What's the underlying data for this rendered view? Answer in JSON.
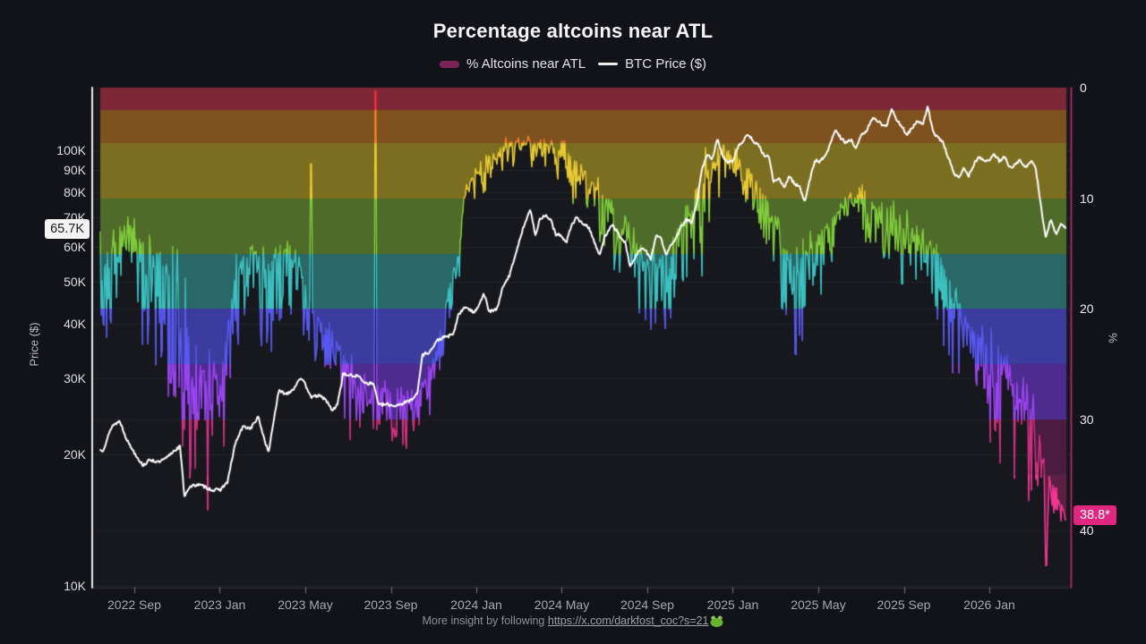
{
  "header": {
    "title": "Percentage altcoins near ATL",
    "legend": [
      {
        "label": "% Altcoins near ATL",
        "swatch": "bar",
        "color": "#7c2356"
      },
      {
        "label": "BTC Price ($)",
        "swatch": "line",
        "color": "#ececec"
      }
    ]
  },
  "footer": {
    "prefix": "More insight by following ",
    "link_text": "https://x.com/darkfost_coc?s=21",
    "emoji": "frog-icon"
  },
  "colors": {
    "background": "#121318",
    "plot_background": "#17181d",
    "btc_line": "#ffffff",
    "left_axis": "#ebebee",
    "right_axis": "#c12a72",
    "accent_pink": "#e0267f",
    "current_price_box_bg": "#f4f4f4",
    "grid": "rgba(255,255,255,0.055)"
  },
  "chart_data": {
    "type": "combo",
    "title": "Percentage altcoins near ATL",
    "x_axis": {
      "start": 2022.545,
      "end": 2026.3,
      "tick_labels": [
        "2022 Sep",
        "2023 Jan",
        "2023 May",
        "2023 Sep",
        "2024 Jan",
        "2024 May",
        "2024 Sep",
        "2025 Jan",
        "2025 May",
        "2025 Sep",
        "2026 Jan"
      ],
      "tick_positions": [
        2022.6667,
        2023.0,
        2023.3333,
        2023.6667,
        2024.0,
        2024.3333,
        2024.6667,
        2025.0,
        2025.3333,
        2025.6667,
        2026.0
      ]
    },
    "y_left": {
      "title": "Price ($)",
      "scale": "log",
      "unit": "USD",
      "tick_labels": [
        "100K",
        "90K",
        "80K",
        "70K",
        "60K",
        "50K",
        "40K",
        "30K",
        "20K",
        "10K"
      ],
      "tick_values_k": [
        100,
        90,
        80,
        70,
        60,
        50,
        40,
        30,
        20,
        10
      ],
      "current": {
        "label": "65.7K",
        "value_k": 65.7
      }
    },
    "y_right": {
      "title": "%",
      "inverted": true,
      "range": [
        0,
        45.2
      ],
      "tick_labels": [
        "0",
        "10",
        "20",
        "30",
        "40"
      ],
      "tick_values": [
        0,
        10,
        20,
        30,
        40
      ],
      "current": {
        "label": "38.8*",
        "value": 38.8
      }
    },
    "bands_pct": [
      {
        "from": 0,
        "to": 2,
        "fill": "#7e2837",
        "stroke": "#f5303e"
      },
      {
        "from": 2,
        "to": 5,
        "fill": "#7e511f",
        "stroke": "#ef8028"
      },
      {
        "from": 5,
        "to": 10,
        "fill": "#7b6e21",
        "stroke": "#e7c934"
      },
      {
        "from": 10,
        "to": 15,
        "fill": "#4f6b2a",
        "stroke": "#80cc3c"
      },
      {
        "from": 15,
        "to": 20,
        "fill": "#2a6767",
        "stroke": "#3cc0c0"
      },
      {
        "from": 20,
        "to": 25,
        "fill": "#3c3c9e",
        "stroke": "#5858f0"
      },
      {
        "from": 25,
        "to": 30,
        "fill": "#4e2b8e",
        "stroke": "#9a44f0"
      },
      {
        "from": 30,
        "to": 35,
        "fill": "#4c1c40",
        "stroke": "#d03080"
      },
      {
        "from": 35,
        "to": 45.2,
        "fill": "#5c2044",
        "stroke": "#f23690"
      }
    ],
    "series": [
      {
        "name": "% Altcoins near ATL",
        "type": "area_bars_line_rainbow",
        "y_axis": "right",
        "current_value": 38.8,
        "noise_seed": 7,
        "anchors_t_base_spikeamp": [
          [
            2022.545,
            16,
            11
          ],
          [
            2022.6,
            13,
            7
          ],
          [
            2022.65,
            12.5,
            6
          ],
          [
            2022.7,
            14,
            13
          ],
          [
            2022.76,
            15,
            13
          ],
          [
            2022.82,
            17,
            13
          ],
          [
            2022.86,
            21,
            15
          ],
          [
            2022.92,
            25,
            12
          ],
          [
            2022.97,
            27,
            10.5
          ],
          [
            2023.02,
            24,
            9
          ],
          [
            2023.06,
            17,
            8
          ],
          [
            2023.12,
            14.5,
            6
          ],
          [
            2023.17,
            16,
            10
          ],
          [
            2023.21,
            15,
            7
          ],
          [
            2023.26,
            14.5,
            6
          ],
          [
            2023.31,
            16,
            6
          ],
          [
            2023.36,
            20,
            5
          ],
          [
            2023.42,
            22,
            5
          ],
          [
            2023.47,
            23.5,
            6
          ],
          [
            2023.52,
            26,
            5.5
          ],
          [
            2023.58,
            27,
            5
          ],
          [
            2023.63,
            27.5,
            5
          ],
          [
            2023.68,
            27.5,
            5
          ],
          [
            2023.73,
            28,
            4.5
          ],
          [
            2023.78,
            27.5,
            4.5
          ],
          [
            2023.83,
            25,
            5
          ],
          [
            2023.88,
            20,
            6
          ],
          [
            2023.92,
            15,
            5
          ],
          [
            2023.96,
            9.5,
            4
          ],
          [
            2024.0,
            7,
            3.2
          ],
          [
            2024.06,
            6,
            2.8
          ],
          [
            2024.12,
            5,
            2.4
          ],
          [
            2024.18,
            4.6,
            2.2
          ],
          [
            2024.24,
            5,
            2.6
          ],
          [
            2024.3,
            5.2,
            2.8
          ],
          [
            2024.36,
            6,
            3.4
          ],
          [
            2024.42,
            7.5,
            4
          ],
          [
            2024.48,
            9.5,
            5
          ],
          [
            2024.54,
            11,
            5.5
          ],
          [
            2024.6,
            14,
            8
          ],
          [
            2024.66,
            16,
            8
          ],
          [
            2024.72,
            15.5,
            9
          ],
          [
            2024.78,
            13,
            6
          ],
          [
            2024.84,
            11,
            8
          ],
          [
            2024.9,
            7.5,
            9
          ],
          [
            2024.96,
            5.5,
            3
          ],
          [
            2025.02,
            6.5,
            3.2
          ],
          [
            2025.08,
            8,
            4
          ],
          [
            2025.14,
            10.5,
            5
          ],
          [
            2025.2,
            14,
            8
          ],
          [
            2025.26,
            16,
            9
          ],
          [
            2025.32,
            14,
            6
          ],
          [
            2025.38,
            12,
            5
          ],
          [
            2025.44,
            10.5,
            4.5
          ],
          [
            2025.5,
            9.5,
            4.5
          ],
          [
            2025.56,
            10.5,
            5
          ],
          [
            2025.62,
            11.5,
            5.5
          ],
          [
            2025.68,
            12.5,
            6
          ],
          [
            2025.74,
            13,
            6
          ],
          [
            2025.8,
            15,
            7
          ],
          [
            2025.86,
            19,
            8
          ],
          [
            2025.92,
            21.5,
            8
          ],
          [
            2025.98,
            23.5,
            8
          ],
          [
            2026.04,
            25,
            9
          ],
          [
            2026.1,
            26.5,
            9
          ],
          [
            2026.16,
            29,
            9
          ],
          [
            2026.2,
            32.5,
            7
          ],
          [
            2026.24,
            35.5,
            6
          ],
          [
            2026.27,
            37,
            4
          ],
          [
            2026.3,
            38.8,
            1.5
          ]
        ],
        "event_spikes": [
          {
            "t": 2023.355,
            "value": 6.9
          },
          {
            "t": 2023.608,
            "value": 0.3
          },
          {
            "t": 2026.22,
            "value": 43.2
          }
        ]
      },
      {
        "name": "BTC Price ($)",
        "type": "line",
        "y_axis": "left",
        "current_value_k": 65.7,
        "noise_seed": 13,
        "anchors_t_price_k": [
          [
            2022.545,
            20.5
          ],
          [
            2022.58,
            23.3
          ],
          [
            2022.61,
            23.9
          ],
          [
            2022.64,
            21.5
          ],
          [
            2022.67,
            20.1
          ],
          [
            2022.7,
            18.9
          ],
          [
            2022.73,
            19.5
          ],
          [
            2022.76,
            19.2
          ],
          [
            2022.79,
            19.6
          ],
          [
            2022.82,
            20.4
          ],
          [
            2022.845,
            20.9
          ],
          [
            2022.862,
            16.1
          ],
          [
            2022.88,
            16.8
          ],
          [
            2022.91,
            17.1
          ],
          [
            2022.94,
            16.9
          ],
          [
            2022.97,
            16.6
          ],
          [
            2023.0,
            16.6
          ],
          [
            2023.03,
            17.3
          ],
          [
            2023.06,
            21.2
          ],
          [
            2023.09,
            23.2
          ],
          [
            2023.12,
            23.0
          ],
          [
            2023.15,
            24.4
          ],
          [
            2023.17,
            22.1
          ],
          [
            2023.19,
            20.2
          ],
          [
            2023.21,
            24.0
          ],
          [
            2023.23,
            28.0
          ],
          [
            2023.26,
            27.6
          ],
          [
            2023.29,
            28.4
          ],
          [
            2023.31,
            30.0
          ],
          [
            2023.33,
            29.2
          ],
          [
            2023.36,
            27.0
          ],
          [
            2023.38,
            27.4
          ],
          [
            2023.41,
            26.9
          ],
          [
            2023.44,
            25.2
          ],
          [
            2023.46,
            26.3
          ],
          [
            2023.48,
            30.6
          ],
          [
            2023.51,
            30.4
          ],
          [
            2023.54,
            30.3
          ],
          [
            2023.57,
            29.2
          ],
          [
            2023.6,
            29.1
          ],
          [
            2023.62,
            26.0
          ],
          [
            2023.65,
            26.1
          ],
          [
            2023.68,
            25.9
          ],
          [
            2023.71,
            26.2
          ],
          [
            2023.74,
            26.6
          ],
          [
            2023.77,
            27.6
          ],
          [
            2023.79,
            33.9
          ],
          [
            2023.82,
            34.5
          ],
          [
            2023.85,
            36.7
          ],
          [
            2023.88,
            37.3
          ],
          [
            2023.91,
            37.7
          ],
          [
            2023.93,
            41.9
          ],
          [
            2023.96,
            43.8
          ],
          [
            2023.99,
            42.3
          ],
          [
            2024.01,
            44.2
          ],
          [
            2024.03,
            46.9
          ],
          [
            2024.05,
            42.6
          ],
          [
            2024.08,
            43.1
          ],
          [
            2024.1,
            47.8
          ],
          [
            2024.13,
            51.8
          ],
          [
            2024.15,
            57.0
          ],
          [
            2024.17,
            62.5
          ],
          [
            2024.19,
            68.5
          ],
          [
            2024.21,
            73.1
          ],
          [
            2024.23,
            64.0
          ],
          [
            2024.25,
            69.9
          ],
          [
            2024.27,
            70.8
          ],
          [
            2024.29,
            69.4
          ],
          [
            2024.31,
            63.8
          ],
          [
            2024.33,
            64.0
          ],
          [
            2024.35,
            61.2
          ],
          [
            2024.37,
            67.0
          ],
          [
            2024.39,
            69.9
          ],
          [
            2024.42,
            67.7
          ],
          [
            2024.44,
            66.3
          ],
          [
            2024.46,
            61.8
          ],
          [
            2024.48,
            57.1
          ],
          [
            2024.5,
            63.2
          ],
          [
            2024.53,
            67.9
          ],
          [
            2024.55,
            64.6
          ],
          [
            2024.58,
            61.5
          ],
          [
            2024.6,
            54.0
          ],
          [
            2024.62,
            56.8
          ],
          [
            2024.64,
            59.4
          ],
          [
            2024.66,
            58.9
          ],
          [
            2024.68,
            56.2
          ],
          [
            2024.7,
            63.6
          ],
          [
            2024.72,
            62.9
          ],
          [
            2024.74,
            57.3
          ],
          [
            2024.76,
            60.8
          ],
          [
            2024.78,
            62.9
          ],
          [
            2024.8,
            67.0
          ],
          [
            2024.82,
            69.4
          ],
          [
            2024.84,
            68.2
          ],
          [
            2024.86,
            75.6
          ],
          [
            2024.88,
            90.5
          ],
          [
            2024.9,
            97.5
          ],
          [
            2024.92,
            95.8
          ],
          [
            2024.94,
            106.0
          ],
          [
            2024.96,
            97.0
          ],
          [
            2024.98,
            94.0
          ],
          [
            2025.0,
            94.4
          ],
          [
            2025.02,
            102.1
          ],
          [
            2025.04,
            104.8
          ],
          [
            2025.06,
            109.2
          ],
          [
            2025.08,
            104.7
          ],
          [
            2025.1,
            102.7
          ],
          [
            2025.12,
            97.6
          ],
          [
            2025.14,
            96.5
          ],
          [
            2025.16,
            84.5
          ],
          [
            2025.18,
            86.0
          ],
          [
            2025.2,
            82.1
          ],
          [
            2025.22,
            87.2
          ],
          [
            2025.24,
            83.9
          ],
          [
            2025.26,
            82.5
          ],
          [
            2025.28,
            76.3
          ],
          [
            2025.3,
            85.1
          ],
          [
            2025.32,
            94.8
          ],
          [
            2025.34,
            94.2
          ],
          [
            2025.36,
            97.0
          ],
          [
            2025.38,
            103.2
          ],
          [
            2025.4,
            111.7
          ],
          [
            2025.42,
            107.0
          ],
          [
            2025.44,
            103.9
          ],
          [
            2025.46,
            105.6
          ],
          [
            2025.48,
            101.5
          ],
          [
            2025.5,
            107.9
          ],
          [
            2025.52,
            110.2
          ],
          [
            2025.54,
            118.0
          ],
          [
            2025.56,
            117.5
          ],
          [
            2025.58,
            114.9
          ],
          [
            2025.6,
            113.6
          ],
          [
            2025.62,
            124.3
          ],
          [
            2025.64,
            117.4
          ],
          [
            2025.66,
            113.0
          ],
          [
            2025.68,
            108.7
          ],
          [
            2025.7,
            112.4
          ],
          [
            2025.72,
            116.9
          ],
          [
            2025.74,
            114.1
          ],
          [
            2025.76,
            125.9
          ],
          [
            2025.78,
            110.1
          ],
          [
            2025.8,
            107.3
          ],
          [
            2025.82,
            103.9
          ],
          [
            2025.84,
            96.1
          ],
          [
            2025.86,
            89.3
          ],
          [
            2025.88,
            86.0
          ],
          [
            2025.9,
            91.7
          ],
          [
            2025.92,
            87.4
          ],
          [
            2025.94,
            93.0
          ],
          [
            2025.96,
            96.8
          ],
          [
            2025.98,
            94.1
          ],
          [
            2026.0,
            95.3
          ],
          [
            2026.02,
            97.8
          ],
          [
            2026.04,
            94.2
          ],
          [
            2026.06,
            96.6
          ],
          [
            2026.08,
            91.2
          ],
          [
            2026.1,
            92.4
          ],
          [
            2026.12,
            95.6
          ],
          [
            2026.14,
            91.1
          ],
          [
            2026.16,
            94.3
          ],
          [
            2026.18,
            92.0
          ],
          [
            2026.2,
            75.0
          ],
          [
            2026.22,
            63.5
          ],
          [
            2026.24,
            69.0
          ],
          [
            2026.26,
            63.8
          ],
          [
            2026.28,
            68.2
          ],
          [
            2026.3,
            65.7
          ]
        ]
      }
    ]
  }
}
